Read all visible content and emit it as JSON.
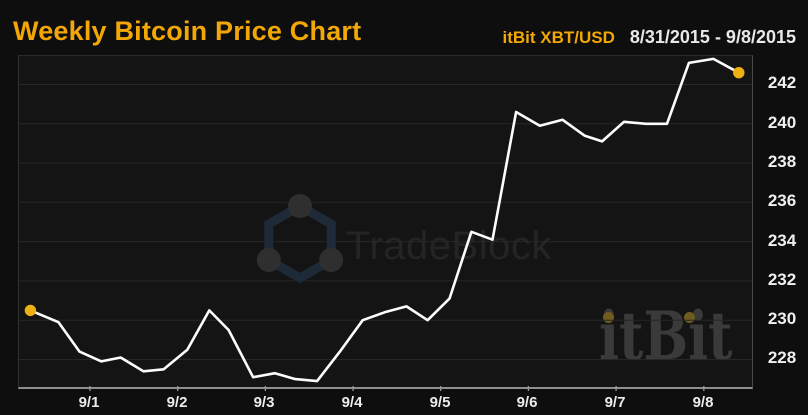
{
  "header": {
    "title": "Weekly Bitcoin Price Chart",
    "instrument": "itBit XBT/USD",
    "date_range": "8/31/2015 - 9/8/2015"
  },
  "watermarks": {
    "tradeblock_text": "TradeBlock",
    "itbit_text": "itBit"
  },
  "colors": {
    "accent_gold": "#F2A705",
    "marker_gold": "#EFB112",
    "line": "#FCFCFC",
    "background": "#0E0E0E",
    "plot_background": "#141414",
    "gridline": "#272727",
    "axis": "#8F8F8F",
    "tick": "#9A9A9A",
    "hexagon_outline": "#1E2A38",
    "hexagon_node": "#2F2F2F"
  },
  "chart_data": {
    "type": "line",
    "title": "Weekly Bitcoin Price Chart",
    "series_name": "itBit XBT/USD",
    "date_range": "8/31/2015 - 9/8/2015",
    "grid": "horizontal",
    "legend": "none",
    "x_axis": {
      "unit": "days since 8/31/2015 00:00",
      "domain": [
        0.19,
        8.55
      ],
      "ticks": [
        {
          "d": 1,
          "label": "9/1"
        },
        {
          "d": 2,
          "label": "9/2"
        },
        {
          "d": 3,
          "label": "9/3"
        },
        {
          "d": 4,
          "label": "9/4"
        },
        {
          "d": 5,
          "label": "9/5"
        },
        {
          "d": 6,
          "label": "9/6"
        },
        {
          "d": 7,
          "label": "9/7"
        },
        {
          "d": 8,
          "label": "9/8"
        }
      ]
    },
    "y_axis": {
      "unit": "USD",
      "side": "right",
      "domain": [
        226.65,
        243.45
      ],
      "ticks": [
        228,
        230,
        232,
        234,
        236,
        238,
        240,
        242
      ]
    },
    "points": [
      [
        0.32,
        230.5
      ],
      [
        0.64,
        229.9
      ],
      [
        0.88,
        228.4
      ],
      [
        1.13,
        227.9
      ],
      [
        1.35,
        228.1
      ],
      [
        1.61,
        227.4
      ],
      [
        1.84,
        227.5
      ],
      [
        2.11,
        228.5
      ],
      [
        2.36,
        230.5
      ],
      [
        2.58,
        229.5
      ],
      [
        2.86,
        227.1
      ],
      [
        3.11,
        227.3
      ],
      [
        3.34,
        227.0
      ],
      [
        3.59,
        226.9
      ],
      [
        3.85,
        228.4
      ],
      [
        4.11,
        230.0
      ],
      [
        4.36,
        230.4
      ],
      [
        4.61,
        230.7
      ],
      [
        4.85,
        230.0
      ],
      [
        5.1,
        231.1
      ],
      [
        5.35,
        234.5
      ],
      [
        5.59,
        234.1
      ],
      [
        5.86,
        240.6
      ],
      [
        6.13,
        239.9
      ],
      [
        6.39,
        240.2
      ],
      [
        6.64,
        239.4
      ],
      [
        6.84,
        239.1
      ],
      [
        7.09,
        240.1
      ],
      [
        7.34,
        240.0
      ],
      [
        7.58,
        240.0
      ],
      [
        7.83,
        243.1
      ],
      [
        8.11,
        243.3
      ],
      [
        8.4,
        242.6
      ]
    ],
    "endpoint_markers": true
  }
}
